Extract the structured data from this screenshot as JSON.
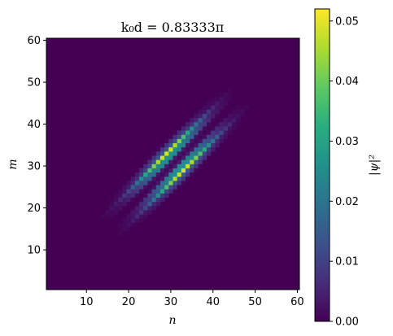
{
  "chart_data": {
    "type": "heatmap",
    "title": "k₀d = 0.83333π",
    "xlabel": "n",
    "ylabel": "m",
    "xlim": [
      1,
      60
    ],
    "ylim": [
      1,
      60
    ],
    "grid_size": 60,
    "x_ticks": [
      "10",
      "20",
      "30",
      "40",
      "50",
      "60"
    ],
    "y_ticks": [
      "10",
      "20",
      "30",
      "40",
      "50",
      "60"
    ],
    "colorbar": {
      "label": "|ψ|²",
      "range": [
        0,
        0.052
      ],
      "ticks": [
        "0.00",
        "0.01",
        "0.02",
        "0.03",
        "0.04",
        "0.05"
      ],
      "colormap": "viridis"
    },
    "distribution": {
      "description_values": "two parallel diagonal ridges along m ≈ n, offset ±2.5 across the diagonal, centred at n = m ≈ 31",
      "center": [
        31,
        31
      ],
      "ridge_offset": 2.5,
      "ridge_width": 0.9,
      "along_sigma": 7.5,
      "peak": 0.052
    }
  }
}
